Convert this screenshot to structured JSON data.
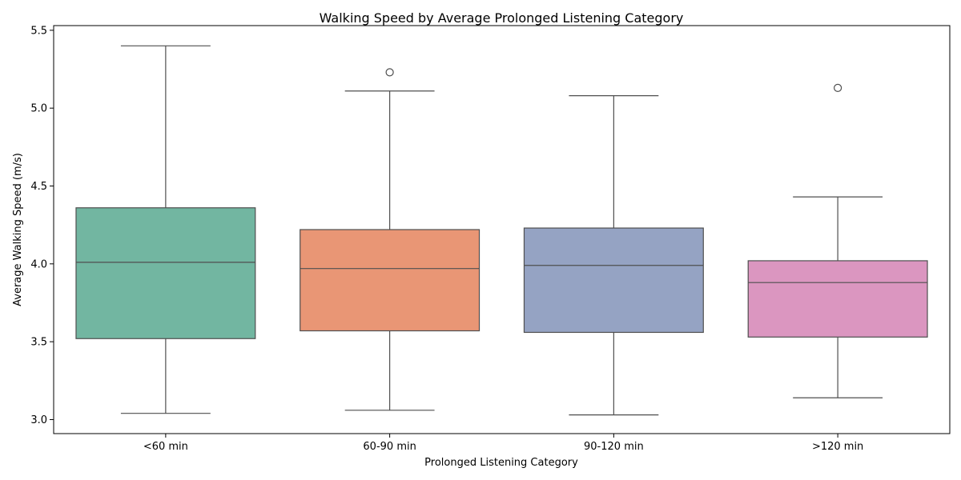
{
  "chart_data": {
    "type": "box",
    "title": "Walking Speed by Average Prolonged Listening Category",
    "xlabel": "Prolonged Listening Category",
    "ylabel": "Average Walking Speed (m/s)",
    "ylim": [
      2.91,
      5.53
    ],
    "yticks": [
      3.0,
      3.5,
      4.0,
      4.5,
      5.0,
      5.5
    ],
    "ytick_labels": [
      "3.0",
      "3.5",
      "4.0",
      "4.5",
      "5.0",
      "5.5"
    ],
    "grid": false,
    "legend": "none",
    "categories": [
      "<60 min",
      "60-90 min",
      "90-120 min",
      ">120 min"
    ],
    "boxes": [
      {
        "category": "<60 min",
        "whisker_low": 3.04,
        "q1": 3.52,
        "median": 4.01,
        "q3": 4.36,
        "whisker_high": 5.4,
        "outliers": [],
        "color": "#72b6a1"
      },
      {
        "category": "60-90 min",
        "whisker_low": 3.06,
        "q1": 3.57,
        "median": 3.97,
        "q3": 4.22,
        "whisker_high": 5.11,
        "outliers": [
          5.23
        ],
        "color": "#e99675"
      },
      {
        "category": "90-120 min",
        "whisker_low": 3.03,
        "q1": 3.56,
        "median": 3.99,
        "q3": 4.23,
        "whisker_high": 5.08,
        "outliers": [],
        "color": "#95a3c3"
      },
      {
        "category": ">120 min",
        "whisker_low": 3.14,
        "q1": 3.53,
        "median": 3.88,
        "q3": 4.02,
        "whisker_high": 4.43,
        "outliers": [
          5.13
        ],
        "color": "#db96c0"
      }
    ],
    "line_color": "#4f4f4f"
  }
}
